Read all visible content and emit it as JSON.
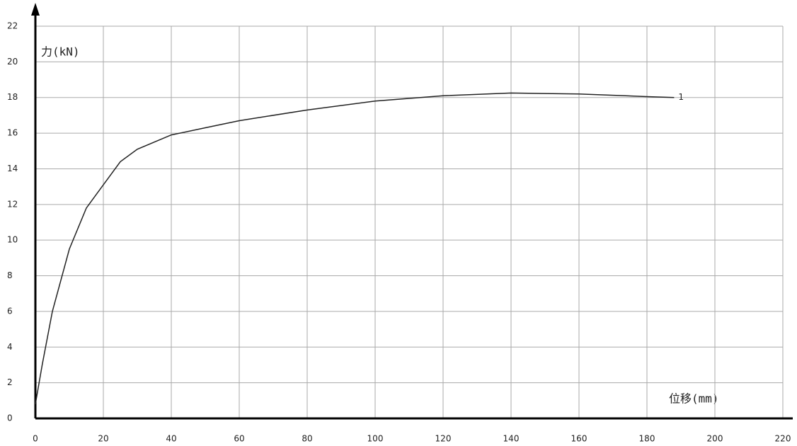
{
  "chart_data": {
    "type": "line",
    "y_label": "力(kN)",
    "x_label": "位移(mm)",
    "x": [
      0,
      2,
      5,
      10,
      15,
      20,
      25,
      30,
      40,
      50,
      60,
      80,
      100,
      120,
      140,
      160,
      180,
      188
    ],
    "series": [
      {
        "name": "1",
        "color": "#222222",
        "values": [
          0.8,
          3,
          6,
          9.5,
          11.8,
          13.1,
          14.4,
          15.1,
          15.9,
          16.3,
          16.7,
          17.3,
          17.8,
          18.1,
          18.25,
          18.2,
          18.05,
          18.0
        ]
      }
    ],
    "xlim": [
      0,
      220
    ],
    "xticks": [
      0,
      20,
      40,
      60,
      80,
      100,
      120,
      140,
      160,
      180,
      200,
      220
    ],
    "ylim": [
      0,
      22
    ],
    "yticks": [
      0,
      2,
      4,
      6,
      8,
      10,
      12,
      14,
      16,
      18,
      20,
      22
    ],
    "grid": true
  }
}
